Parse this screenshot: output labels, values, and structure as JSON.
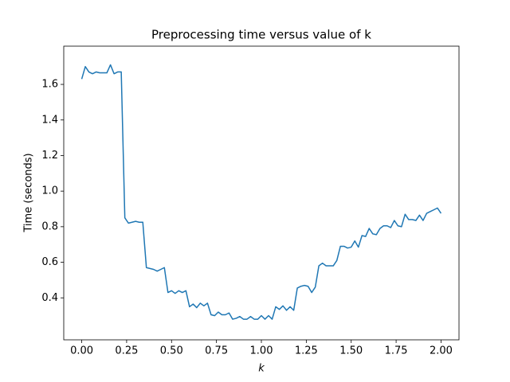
{
  "chart_data": {
    "type": "line",
    "title": "Preprocessing time versus value of k",
    "x_label": "k",
    "y_label": "Time (seconds)",
    "x": [
      0,
      0.02,
      0.04,
      0.06,
      0.08,
      0.1,
      0.12,
      0.14,
      0.16,
      0.18,
      0.2,
      0.22,
      0.24,
      0.26,
      0.28,
      0.3,
      0.32,
      0.34,
      0.36,
      0.38,
      0.4,
      0.42,
      0.44,
      0.46,
      0.48,
      0.5,
      0.52,
      0.54,
      0.56,
      0.58,
      0.6,
      0.62,
      0.64,
      0.66,
      0.68,
      0.7,
      0.72,
      0.74,
      0.76,
      0.78,
      0.8,
      0.82,
      0.84,
      0.86,
      0.88,
      0.9,
      0.92,
      0.94,
      0.96,
      0.98,
      1,
      1.02,
      1.04,
      1.06,
      1.08,
      1.1,
      1.12,
      1.14,
      1.16,
      1.18,
      1.2,
      1.22,
      1.24,
      1.26,
      1.28,
      1.3,
      1.32,
      1.34,
      1.36,
      1.38,
      1.4,
      1.42,
      1.44,
      1.46,
      1.48,
      1.5,
      1.52,
      1.54,
      1.56,
      1.58,
      1.6,
      1.62,
      1.64,
      1.66,
      1.68,
      1.7,
      1.72,
      1.74,
      1.76,
      1.78,
      1.8,
      1.82,
      1.84,
      1.86,
      1.88,
      1.9,
      1.92,
      1.94,
      1.96,
      1.98,
      2
    ],
    "series": [
      {
        "color": "#1f77b4",
        "values": [
          1.63,
          1.7,
          1.67,
          1.66,
          1.67,
          1.665,
          1.665,
          1.665,
          1.71,
          1.66,
          1.67,
          1.67,
          0.85,
          0.82,
          0.825,
          0.83,
          0.825,
          0.825,
          0.57,
          0.565,
          0.56,
          0.55,
          0.56,
          0.57,
          0.43,
          0.44,
          0.425,
          0.44,
          0.43,
          0.44,
          0.35,
          0.365,
          0.345,
          0.37,
          0.355,
          0.37,
          0.305,
          0.3,
          0.32,
          0.305,
          0.305,
          0.315,
          0.28,
          0.285,
          0.295,
          0.28,
          0.28,
          0.295,
          0.28,
          0.28,
          0.3,
          0.28,
          0.3,
          0.28,
          0.35,
          0.335,
          0.355,
          0.33,
          0.35,
          0.33,
          0.455,
          0.465,
          0.47,
          0.465,
          0.43,
          0.46,
          0.58,
          0.595,
          0.58,
          0.58,
          0.58,
          0.61,
          0.69,
          0.69,
          0.68,
          0.685,
          0.72,
          0.685,
          0.75,
          0.745,
          0.79,
          0.76,
          0.755,
          0.79,
          0.805,
          0.805,
          0.795,
          0.835,
          0.805,
          0.8,
          0.87,
          0.84,
          0.84,
          0.835,
          0.865,
          0.835,
          0.875,
          0.885,
          0.895,
          0.905,
          0.875
        ]
      }
    ],
    "xlim": [
      -0.1,
      2.1
    ],
    "ylim": [
      0.164,
      1.815
    ],
    "xticks": [
      {
        "value": 0,
        "label": "0.00"
      },
      {
        "value": 0.25,
        "label": "0.25"
      },
      {
        "value": 0.5,
        "label": "0.50"
      },
      {
        "value": 0.75,
        "label": "0.75"
      },
      {
        "value": 1,
        "label": "1.00"
      },
      {
        "value": 1.25,
        "label": "1.25"
      },
      {
        "value": 1.5,
        "label": "1.50"
      },
      {
        "value": 1.75,
        "label": "1.75"
      },
      {
        "value": 2,
        "label": "2.00"
      }
    ],
    "yticks": [
      0.4,
      0.6,
      0.8,
      {
        "value": 1,
        "label": "1.0"
      },
      1.2,
      1.4,
      1.6
    ]
  }
}
